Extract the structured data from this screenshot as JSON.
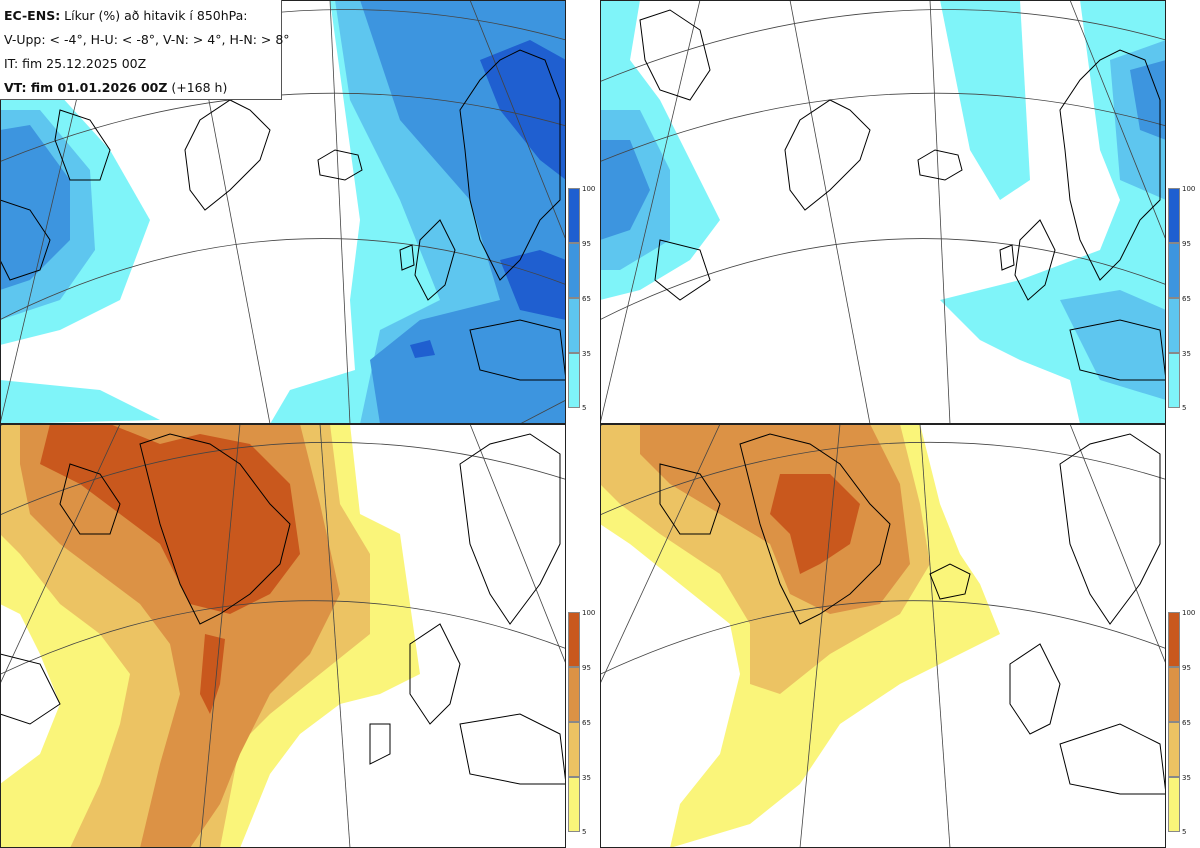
{
  "info": {
    "title_bold": "EC-ENS:",
    "title_rest": " Líkur (%) að hitavik í 850hPa:",
    "legend": "V-Upp: < -4°, H-U: < -8°, V-N: > 4°, H-N: > 8°",
    "it": "IT: fim 25.12.2025 00Z",
    "vt_bold": "VT: fim 01.01.2026 00Z",
    "vt_rest": " (+168 h)"
  },
  "colorbar_ticks": [
    "100",
    "95",
    "65",
    "35",
    "5"
  ],
  "colors": {
    "cold": [
      "#7ff4f9",
      "#5ec6ef",
      "#3d95df",
      "#1f5fd0"
    ],
    "warm": [
      "#faf57a",
      "#ecc363",
      "#dc9245",
      "#c9581d"
    ],
    "land": "#000000",
    "grid": "#444444"
  },
  "panels": [
    {
      "name": "cold-4",
      "scheme": "cold"
    },
    {
      "name": "cold-8",
      "scheme": "cold"
    },
    {
      "name": "warm-4",
      "scheme": "warm"
    },
    {
      "name": "warm-8",
      "scheme": "warm"
    }
  ]
}
